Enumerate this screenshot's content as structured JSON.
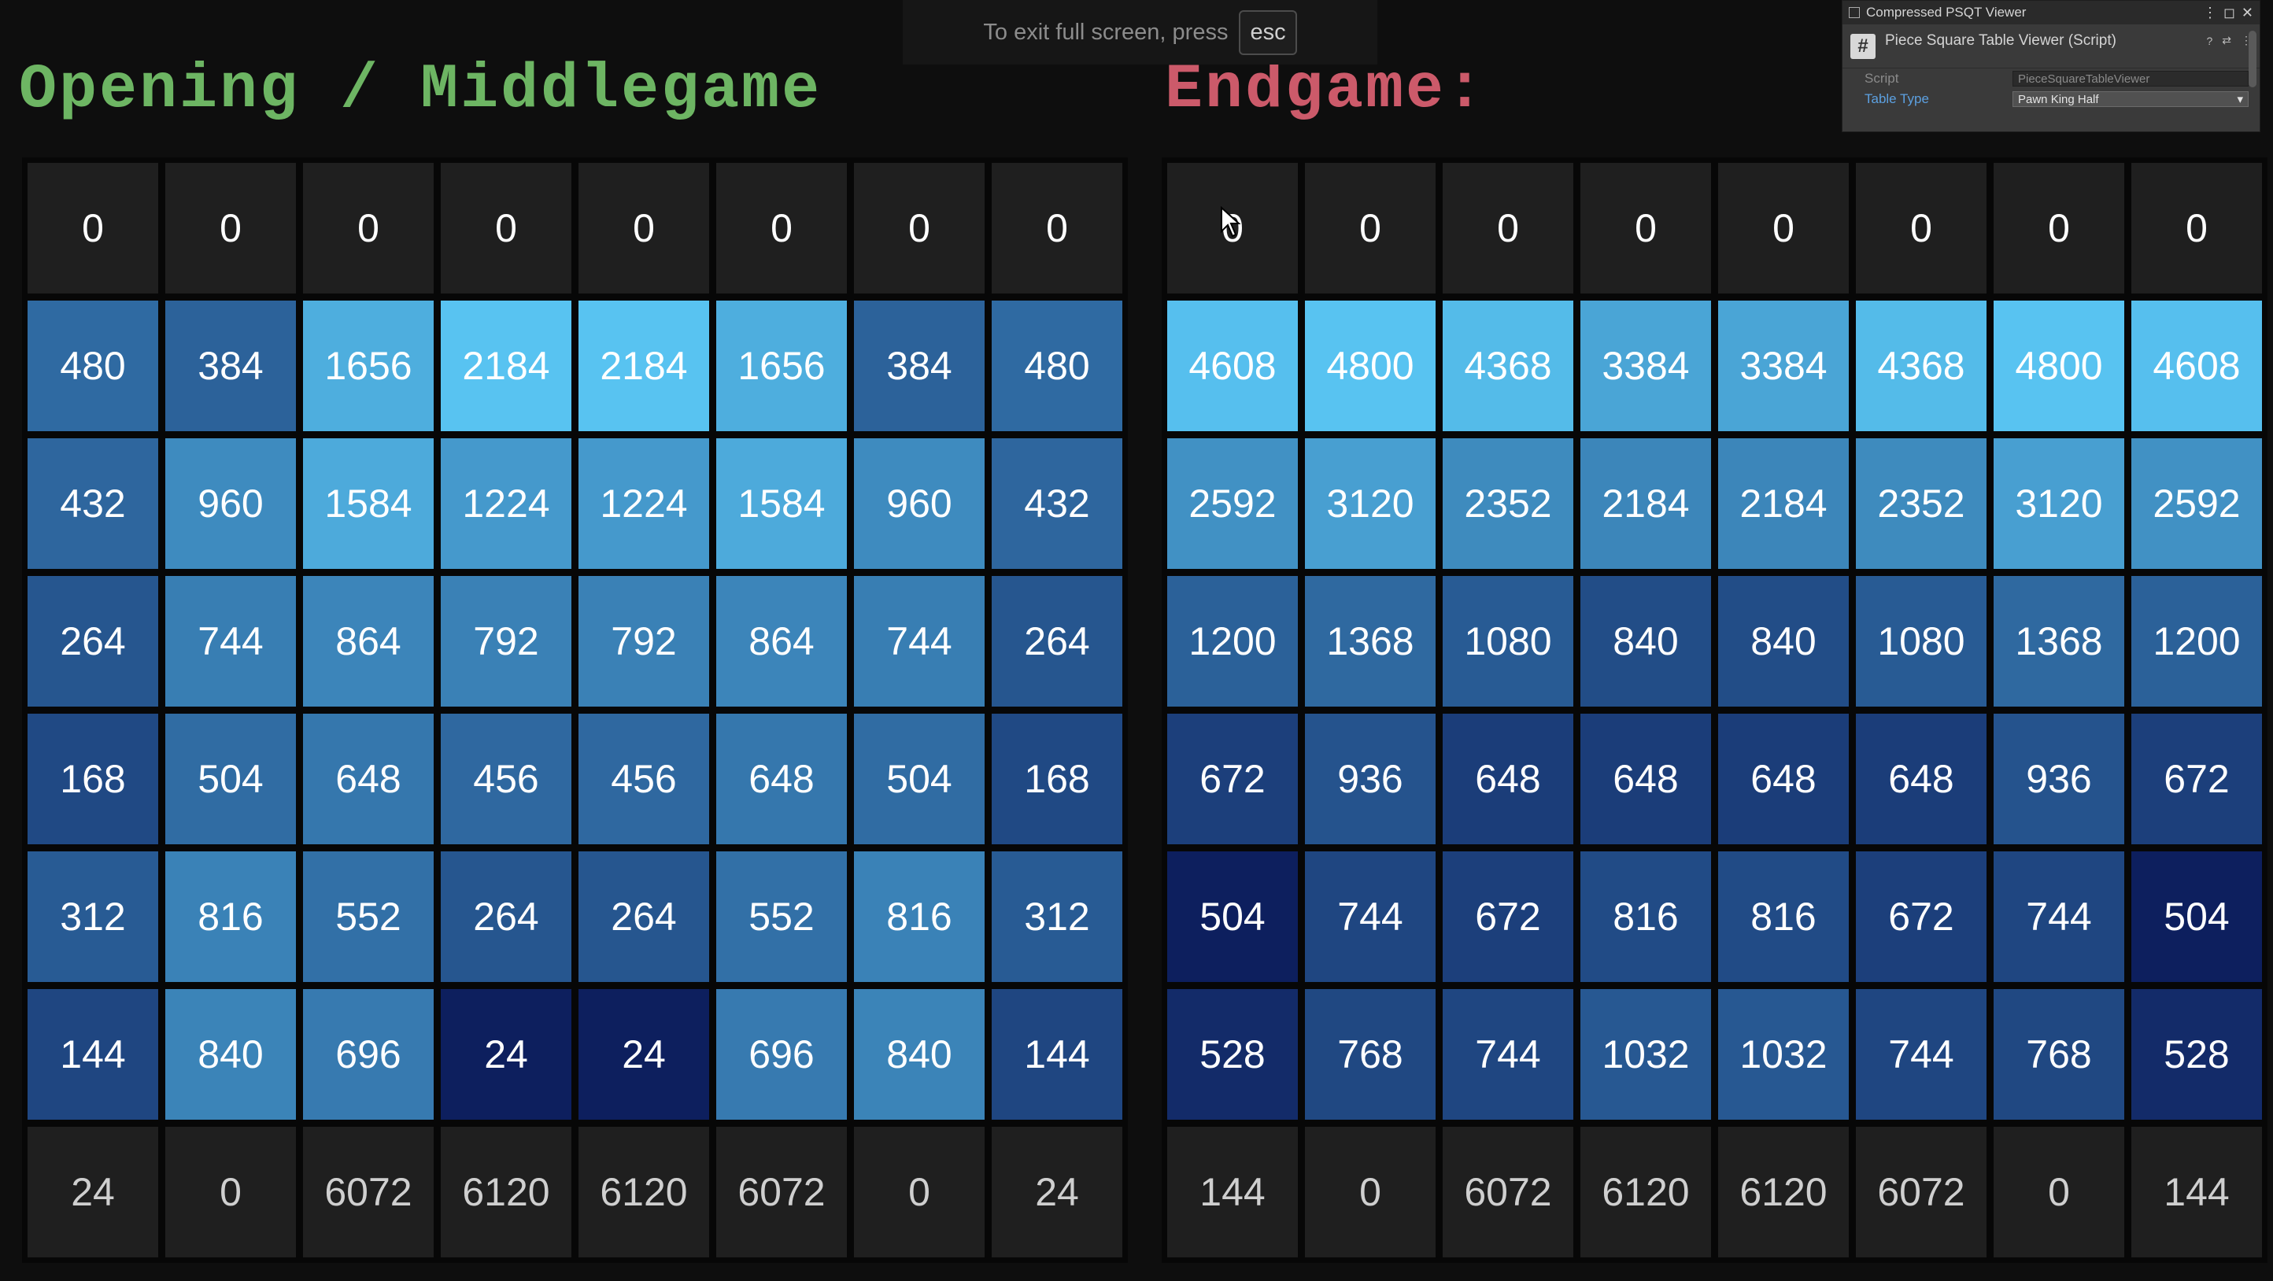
{
  "headings": {
    "left": "Opening / Middlegame",
    "right": "Endgame:"
  },
  "fullscreen_hint": {
    "text": "To exit full screen, press",
    "key": "esc"
  },
  "inspector": {
    "window_title": "Compressed PSQT Viewer",
    "component_title": "Piece Square Table Viewer (Script)",
    "script_label": "Script",
    "script_value": "PieceSquareTableViewer",
    "table_type_label": "Table Type",
    "table_type_value": "Pawn King Half",
    "icons": [
      "hash-icon",
      "help-icon",
      "preset-icon",
      "menu-icon",
      "dropdown-arrow-icon",
      "maximize-icon",
      "close-icon",
      "object-picker-icon"
    ]
  },
  "boards": {
    "middlegame": [
      [
        0,
        0,
        0,
        0,
        0,
        0,
        0,
        0
      ],
      [
        480,
        384,
        1656,
        2184,
        2184,
        1656,
        384,
        480
      ],
      [
        432,
        960,
        1584,
        1224,
        1224,
        1584,
        960,
        432
      ],
      [
        264,
        744,
        864,
        792,
        792,
        864,
        744,
        264
      ],
      [
        168,
        504,
        648,
        456,
        456,
        648,
        504,
        168
      ],
      [
        312,
        816,
        552,
        264,
        264,
        552,
        816,
        312
      ],
      [
        144,
        840,
        696,
        24,
        24,
        696,
        840,
        144
      ],
      [
        24,
        0,
        6072,
        6120,
        6120,
        6072,
        0,
        24
      ]
    ],
    "endgame": [
      [
        0,
        0,
        0,
        0,
        0,
        0,
        0,
        0
      ],
      [
        4608,
        4800,
        4368,
        3384,
        3384,
        4368,
        4800,
        4608
      ],
      [
        2592,
        3120,
        2352,
        2184,
        2184,
        2352,
        3120,
        2592
      ],
      [
        1200,
        1368,
        1080,
        840,
        840,
        1080,
        1368,
        1200
      ],
      [
        672,
        936,
        648,
        648,
        648,
        648,
        936,
        672
      ],
      [
        504,
        744,
        672,
        816,
        816,
        672,
        744,
        504
      ],
      [
        528,
        768,
        744,
        1032,
        1032,
        744,
        768,
        528
      ],
      [
        144,
        0,
        6072,
        6120,
        6120,
        6072,
        0,
        144
      ]
    ]
  },
  "colors": {
    "heading_left": "#6db563",
    "heading_right": "#cc5a6a",
    "edge_cell": "#1f1f1f",
    "heat_low": "#0d1f5e",
    "heat_high": "#58c3f1"
  }
}
